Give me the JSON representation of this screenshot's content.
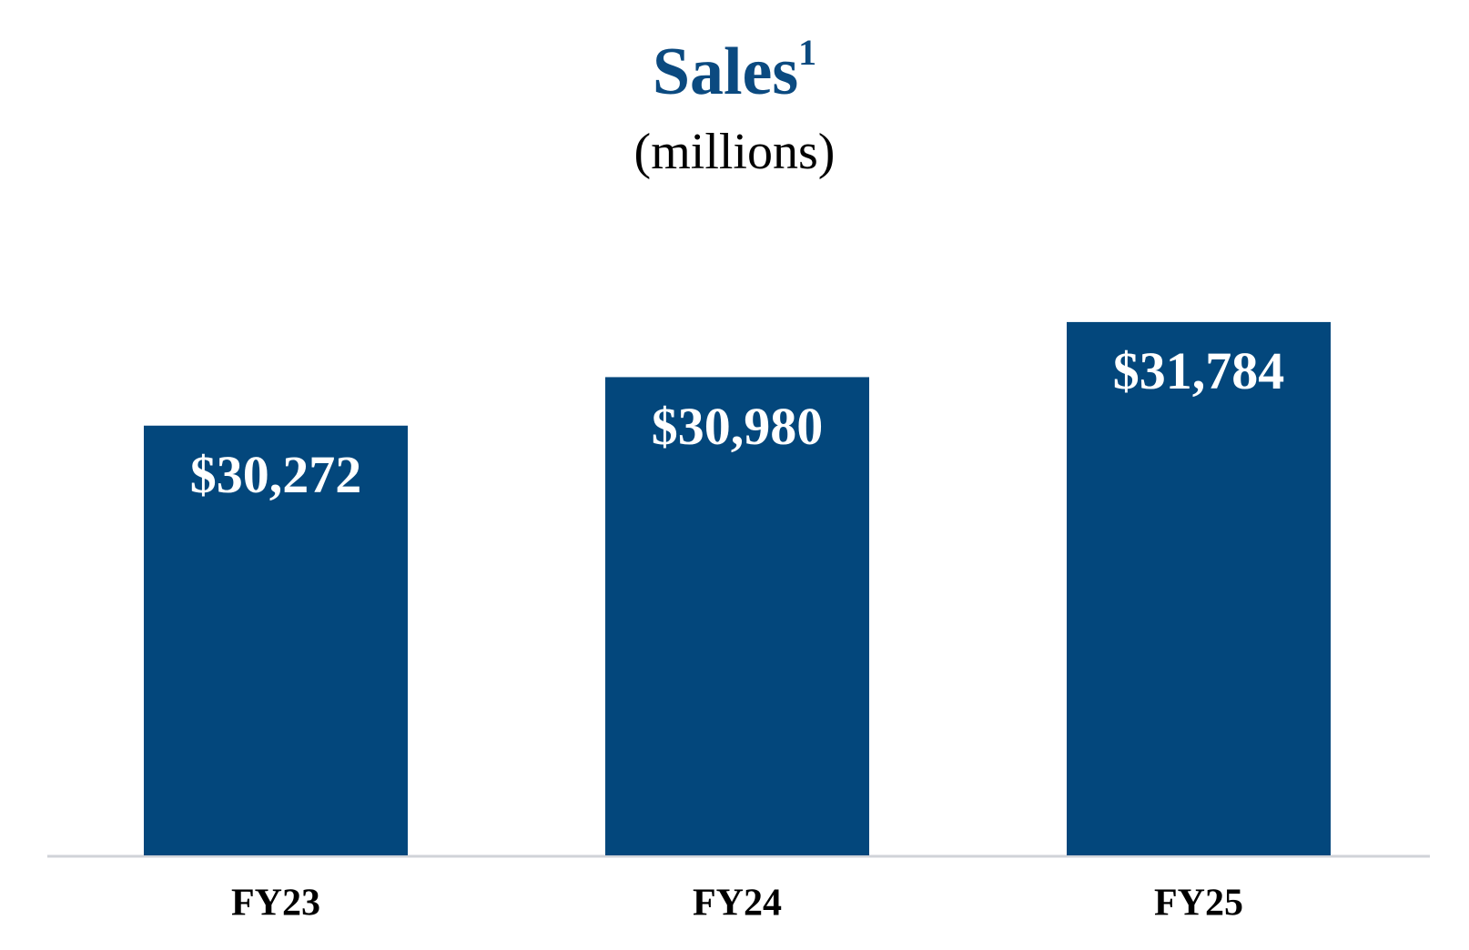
{
  "chart_data": {
    "type": "bar",
    "title": "Sales",
    "title_footnote": "1",
    "subtitle": "(millions)",
    "categories": [
      "FY23",
      "FY24",
      "FY25"
    ],
    "values": [
      30272,
      30980,
      31784
    ],
    "value_labels": [
      "$30,272",
      "$30,980",
      "$31,784"
    ],
    "color": "#03477c",
    "ylim": [
      24000,
      32500
    ]
  }
}
